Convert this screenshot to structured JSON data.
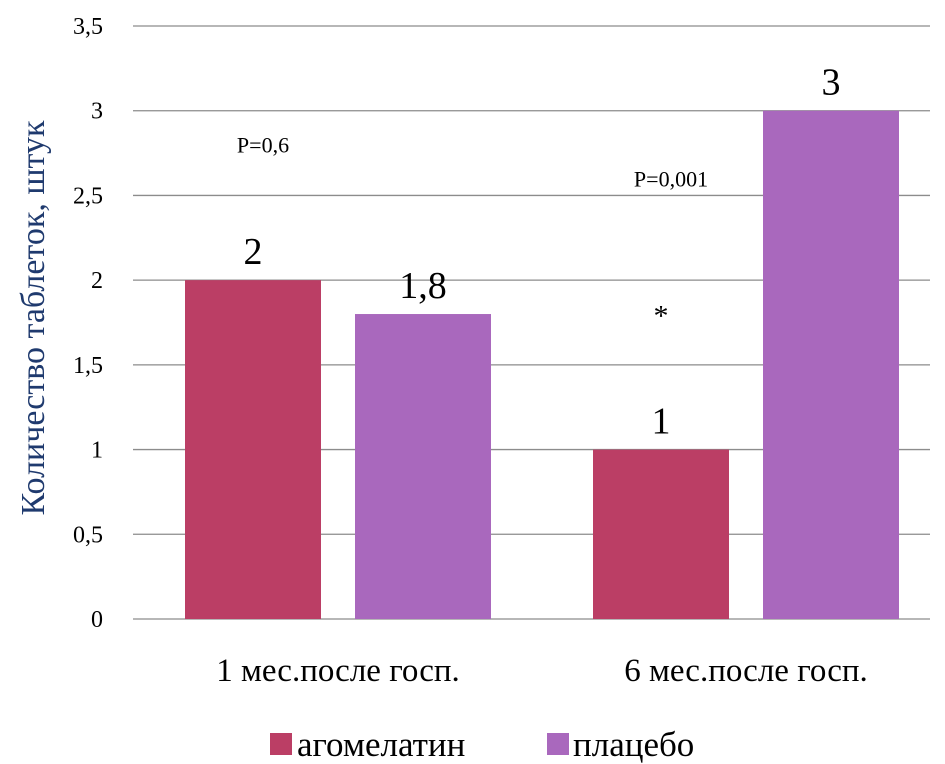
{
  "chart_data": {
    "type": "bar",
    "categories": [
      "1 мес.после госп.",
      "6 мес.после госп."
    ],
    "series": [
      {
        "name": "агомелатин",
        "values": [
          2,
          1
        ],
        "color": "#bb3e65"
      },
      {
        "name": "плацебо",
        "values": [
          1.8,
          3
        ],
        "color": "#a968bd"
      }
    ],
    "data_labels": [
      [
        "2",
        "1"
      ],
      [
        "1,8",
        "3"
      ]
    ],
    "ylabel": "Количество таблеток, штук",
    "ylim": [
      0,
      3.5
    ],
    "y_ticks": [
      {
        "value": 0,
        "label": "0"
      },
      {
        "value": 0.5,
        "label": "0,5"
      },
      {
        "value": 1,
        "label": "1"
      },
      {
        "value": 1.5,
        "label": "1,5"
      },
      {
        "value": 2,
        "label": "2"
      },
      {
        "value": 2.5,
        "label": "2,5"
      },
      {
        "value": 3,
        "label": "3"
      },
      {
        "value": 3.5,
        "label": "3,5"
      }
    ],
    "grid": true,
    "legend_position": "bottom",
    "annotations": [
      {
        "text": "P=0,6",
        "category": 0,
        "value": 2.8
      },
      {
        "text": "P=0,001",
        "category": 1,
        "value": 2.6
      },
      {
        "text": "*",
        "category": 1,
        "value": 1.85
      }
    ]
  }
}
